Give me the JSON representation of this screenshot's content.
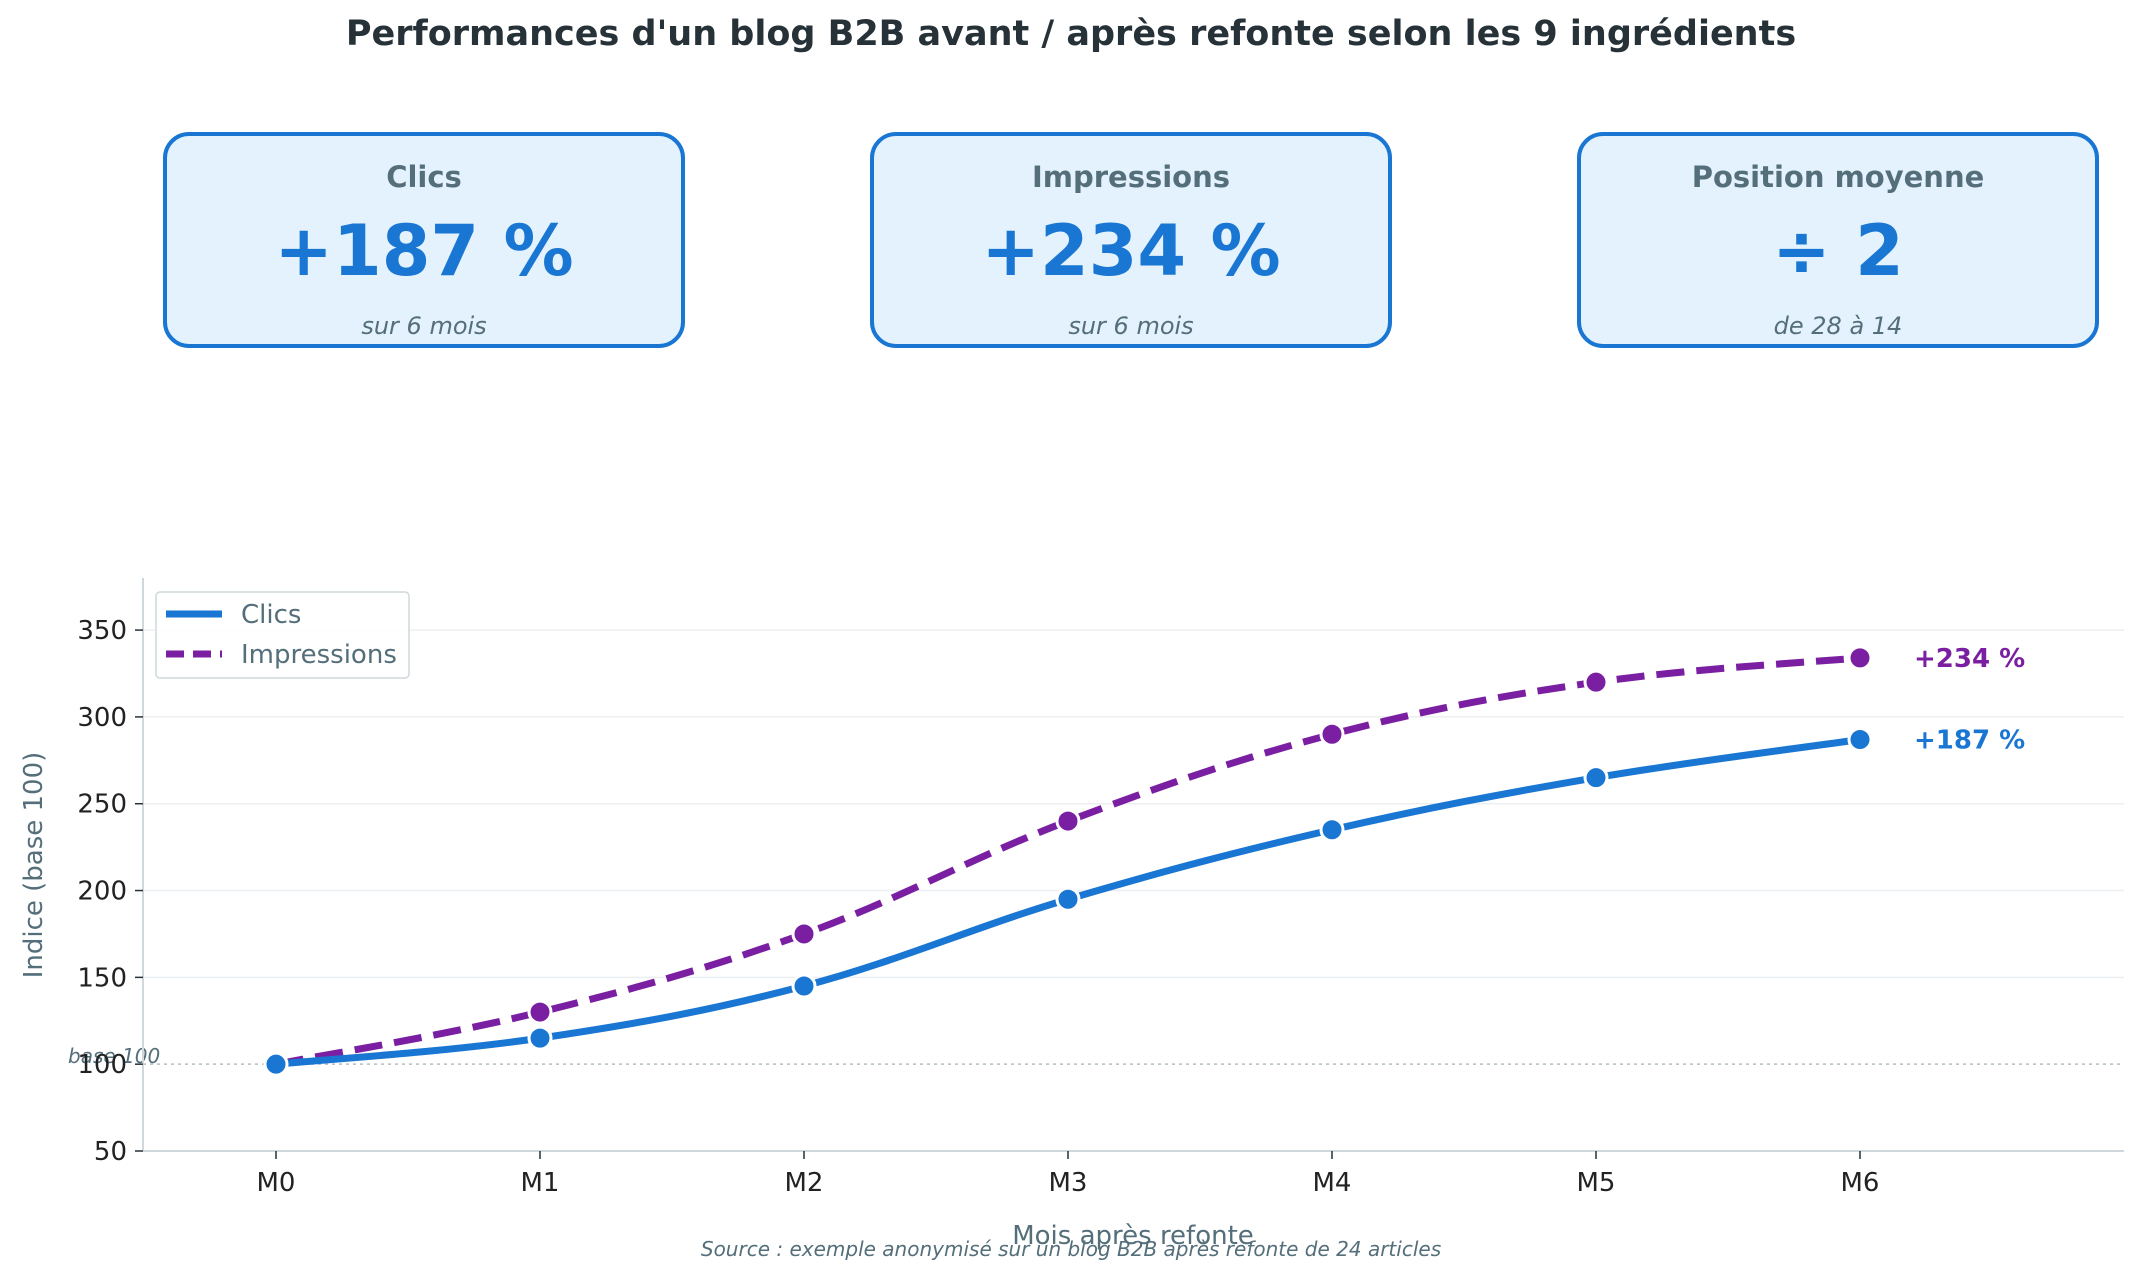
{
  "title": "Performances d'un blog B2B avant / après refonte selon les 9 ingrédients",
  "kpis": [
    {
      "label": "Clics",
      "value": "+187 %",
      "sub": "sur 6 mois"
    },
    {
      "label": "Impressions",
      "value": "+234 %",
      "sub": "sur 6 mois"
    },
    {
      "label": "Position moyenne",
      "value": "÷ 2",
      "sub": "de 28 à 14"
    }
  ],
  "colors": {
    "clics": "#1976d2",
    "impressions": "#7b1fa2",
    "card_bg": "#e3f2fd",
    "axis_text": "#546e7a"
  },
  "source": "Source : exemple anonymisé sur un blog B2B après refonte de 24 articles",
  "chart_data": {
    "type": "line",
    "categories": [
      "M0",
      "M1",
      "M2",
      "M3",
      "M4",
      "M5",
      "M6"
    ],
    "series": [
      {
        "name": "Clics",
        "style": "solid",
        "values": [
          100,
          115,
          145,
          195,
          235,
          265,
          287
        ],
        "end_label": "+187 %"
      },
      {
        "name": "Impressions",
        "style": "dashed",
        "values": [
          100,
          130,
          175,
          240,
          290,
          320,
          334
        ],
        "end_label": "+234 %"
      }
    ],
    "xlabel": "Mois après refonte",
    "ylabel": "Indice (base 100)",
    "ylim": [
      50,
      380
    ],
    "yticks": [
      50,
      100,
      150,
      200,
      250,
      300,
      350
    ],
    "reference_line": {
      "value": 100,
      "label": "base 100"
    },
    "legend": "top-left",
    "grid": "horizontal"
  }
}
